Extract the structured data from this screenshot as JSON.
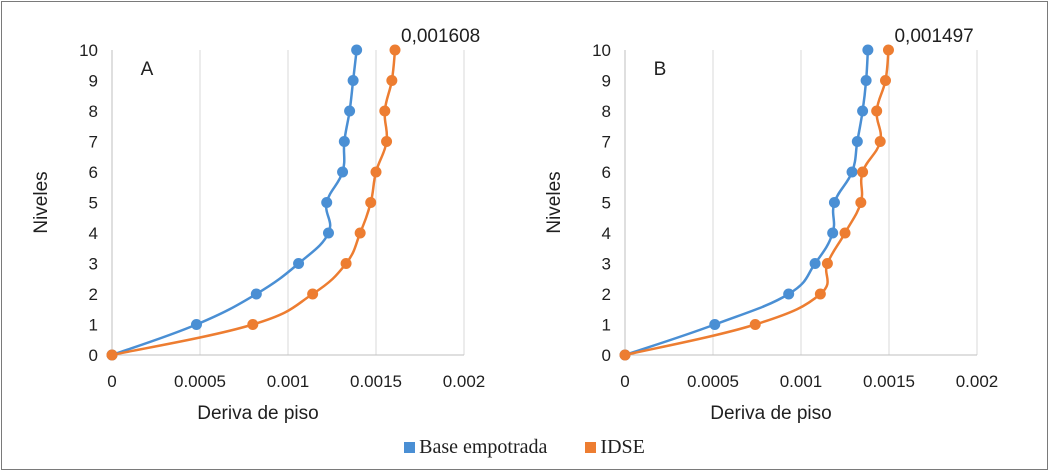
{
  "colors": {
    "base": "#4a8fd4",
    "idse": "#ed7d31",
    "grid": "#d9d9d9",
    "axis": "#bfbfbf"
  },
  "legend": {
    "base_label": "Base empotrada",
    "idse_label": "IDSE"
  },
  "chart_data": [
    {
      "type": "line",
      "panel_label": "A",
      "annotation": "0,001608",
      "xlabel": "Deriva de piso",
      "ylabel": "Niveles",
      "xlim": [
        0,
        0.002
      ],
      "ylim": [
        0,
        10
      ],
      "xticks": [
        "0",
        "0.0005",
        "0.001",
        "0.0015",
        "0.002"
      ],
      "yticks": [
        "0",
        "1",
        "2",
        "3",
        "4",
        "5",
        "6",
        "7",
        "8",
        "9",
        "10"
      ],
      "grid": true,
      "series": [
        {
          "name": "Base empotrada",
          "color": "base",
          "x": [
            0,
            0.00048,
            0.00082,
            0.00106,
            0.00123,
            0.00122,
            0.00131,
            0.00132,
            0.00135,
            0.00137,
            0.00139
          ],
          "y": [
            0,
            1,
            2,
            3,
            4,
            5,
            6,
            7,
            8,
            9,
            10
          ]
        },
        {
          "name": "IDSE",
          "color": "idse",
          "x": [
            0,
            0.0008,
            0.00114,
            0.00133,
            0.00141,
            0.00147,
            0.0015,
            0.00156,
            0.00155,
            0.00159,
            0.001608
          ],
          "y": [
            0,
            1,
            2,
            3,
            4,
            5,
            6,
            7,
            8,
            9,
            10
          ]
        }
      ]
    },
    {
      "type": "line",
      "panel_label": "B",
      "annotation": "0,001497",
      "xlabel": "Deriva de piso",
      "ylabel": "Niveles",
      "xlim": [
        0,
        0.002
      ],
      "ylim": [
        0,
        10
      ],
      "xticks": [
        "0",
        "0.0005",
        "0.001",
        "0.0015",
        "0.002"
      ],
      "yticks": [
        "0",
        "1",
        "2",
        "3",
        "4",
        "5",
        "6",
        "7",
        "8",
        "9",
        "10"
      ],
      "grid": true,
      "series": [
        {
          "name": "Base empotrada",
          "color": "base",
          "x": [
            0,
            0.00051,
            0.00093,
            0.00108,
            0.00118,
            0.00119,
            0.00129,
            0.00132,
            0.00135,
            0.00137,
            0.00138
          ],
          "y": [
            0,
            1,
            2,
            3,
            4,
            5,
            6,
            7,
            8,
            9,
            10
          ]
        },
        {
          "name": "IDSE",
          "color": "idse",
          "x": [
            0,
            0.00074,
            0.00111,
            0.00115,
            0.00125,
            0.00134,
            0.00135,
            0.00145,
            0.00143,
            0.00148,
            0.001497
          ],
          "y": [
            0,
            1,
            2,
            3,
            4,
            5,
            6,
            7,
            8,
            9,
            10
          ]
        }
      ]
    }
  ]
}
